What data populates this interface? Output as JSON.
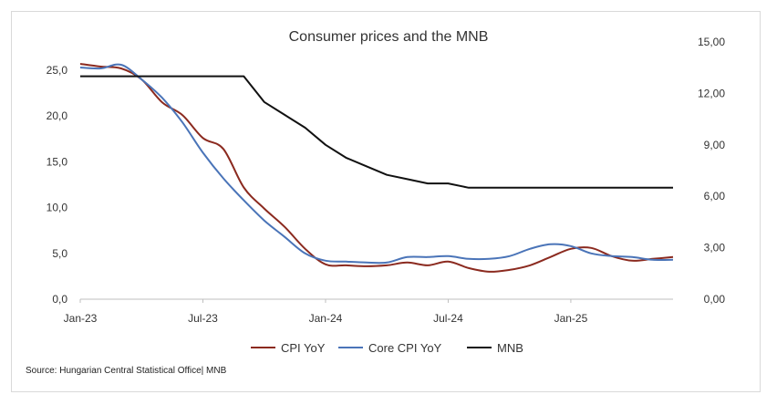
{
  "chart_data": {
    "type": "line",
    "title": "Consumer prices and the MNB",
    "source": "Source: Hungarian Central Statistical Office| MNB",
    "x_tick_labels": [
      "Jan-23",
      "Jul-23",
      "Jan-24",
      "Jul-24",
      "Jan-25"
    ],
    "x_range": [
      "Jan-23",
      "Jun-25"
    ],
    "y_left": {
      "min": 0,
      "max": 25,
      "ticks": [
        "0,0",
        "5,0",
        "10,0",
        "15,0",
        "20,0",
        "25,0"
      ]
    },
    "y_right": {
      "min": 0,
      "max": 15,
      "ticks": [
        "0,00",
        "3,00",
        "6,00",
        "9,00",
        "12,00",
        "15,00"
      ]
    },
    "gridlines": false,
    "legend_position": "bottom",
    "months": [
      "Jan-23",
      "Feb-23",
      "Mar-23",
      "Apr-23",
      "May-23",
      "Jun-23",
      "Jul-23",
      "Aug-23",
      "Sep-23",
      "Oct-23",
      "Nov-23",
      "Dec-23",
      "Jan-24",
      "Feb-24",
      "Mar-24",
      "Apr-24",
      "May-24",
      "Jun-24",
      "Jul-24",
      "Aug-24",
      "Sep-24",
      "Oct-24",
      "Nov-24",
      "Dec-24",
      "Jan-25",
      "Feb-25",
      "Mar-25",
      "Apr-25",
      "May-25",
      "Jun-25"
    ],
    "series": [
      {
        "name": "CPI YoY",
        "axis": "left",
        "color": "#8b2a1f",
        "values": [
          25.7,
          25.4,
          25.2,
          24.0,
          21.5,
          20.1,
          17.6,
          16.4,
          12.2,
          9.9,
          7.9,
          5.5,
          3.8,
          3.7,
          3.6,
          3.7,
          4.0,
          3.7,
          4.1,
          3.4,
          3.0,
          3.2,
          3.7,
          4.6,
          5.5,
          5.6,
          4.7,
          4.2,
          4.4,
          4.6
        ]
      },
      {
        "name": "Core CPI YoY",
        "axis": "left",
        "color": "#4a74b8",
        "values": [
          25.3,
          25.2,
          25.6,
          24.0,
          22.0,
          19.3,
          16.0,
          13.2,
          10.8,
          8.6,
          6.8,
          5.0,
          4.2,
          4.1,
          4.0,
          4.0,
          4.6,
          4.6,
          4.7,
          4.4,
          4.4,
          4.7,
          5.5,
          6.0,
          5.8,
          5.0,
          4.7,
          4.6,
          4.3,
          4.3
        ]
      },
      {
        "name": "MNB",
        "axis": "right",
        "color": "#111111",
        "values": [
          13.0,
          13.0,
          13.0,
          13.0,
          13.0,
          13.0,
          13.0,
          13.0,
          13.0,
          11.5,
          10.75,
          10.0,
          9.0,
          8.25,
          7.75,
          7.25,
          7.0,
          6.75,
          6.75,
          6.5,
          6.5,
          6.5,
          6.5,
          6.5,
          6.5,
          6.5,
          6.5,
          6.5,
          6.5,
          6.5
        ]
      }
    ]
  }
}
